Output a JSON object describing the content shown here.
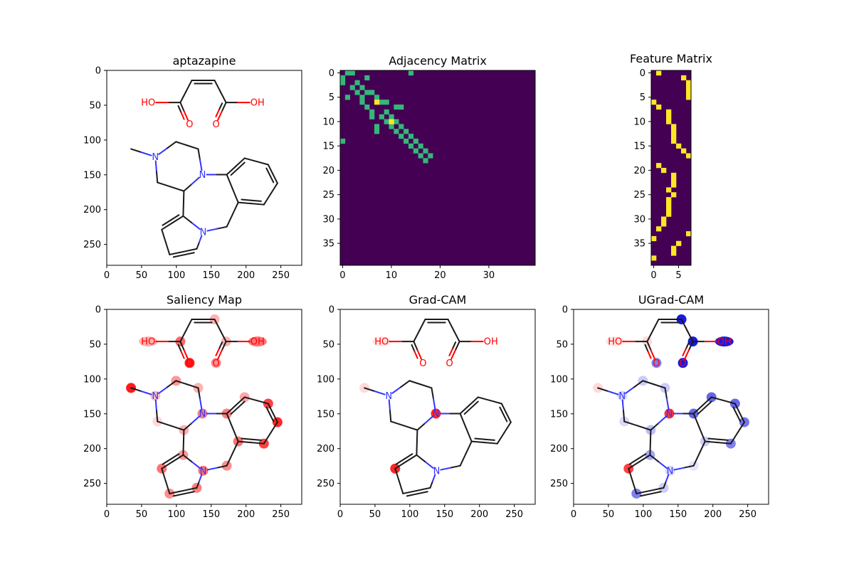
{
  "panels": [
    {
      "id": "p1",
      "title": "aptazapine"
    },
    {
      "id": "p2",
      "title": "Adjacency Matrix"
    },
    {
      "id": "p3",
      "title": "Feature Matrix"
    },
    {
      "id": "p4",
      "title": "Saliency Map"
    },
    {
      "id": "p5",
      "title": "Grad-CAM"
    },
    {
      "id": "p6",
      "title": "UGrad-CAM"
    }
  ],
  "chart_data": [
    {
      "type": "image",
      "title": "aptazapine",
      "xlim": [
        0,
        280
      ],
      "ylim": [
        280,
        0
      ],
      "xticks": [
        0,
        50,
        100,
        150,
        200,
        250
      ],
      "yticks": [
        0,
        50,
        100,
        150,
        200,
        250
      ],
      "atom_labels": [
        "HO",
        "O",
        "O",
        "OH",
        "N",
        "N",
        "N"
      ]
    },
    {
      "type": "heatmap",
      "title": "Adjacency Matrix",
      "xlim": [
        -0.5,
        39.5
      ],
      "ylim": [
        39.5,
        -0.5
      ],
      "xticks": [
        0,
        10,
        20,
        30
      ],
      "yticks": [
        0,
        5,
        10,
        15,
        20,
        25,
        30,
        35
      ],
      "colors": {
        "zero": "#440154",
        "one": "#35b779"
      },
      "cells": [
        [
          0,
          1
        ],
        [
          1,
          0
        ],
        [
          0,
          2
        ],
        [
          2,
          0
        ],
        [
          1,
          5
        ],
        [
          5,
          1
        ],
        [
          2,
          3
        ],
        [
          3,
          2
        ],
        [
          3,
          4
        ],
        [
          4,
          3
        ],
        [
          4,
          5
        ],
        [
          5,
          4
        ],
        [
          4,
          6
        ],
        [
          6,
          4
        ],
        [
          5,
          7
        ],
        [
          7,
          5
        ],
        [
          6,
          8
        ],
        [
          8,
          6
        ],
        [
          6,
          9
        ],
        [
          9,
          6
        ],
        [
          7,
          11
        ],
        [
          11,
          7
        ],
        [
          7,
          12
        ],
        [
          12,
          7
        ],
        [
          8,
          9
        ],
        [
          9,
          8
        ],
        [
          9,
          10
        ],
        [
          10,
          9
        ],
        [
          10,
          11
        ],
        [
          11,
          10
        ],
        [
          11,
          12
        ],
        [
          12,
          11
        ],
        [
          12,
          13
        ],
        [
          13,
          12
        ],
        [
          13,
          14
        ],
        [
          14,
          13
        ],
        [
          14,
          15
        ],
        [
          15,
          14
        ],
        [
          15,
          16
        ],
        [
          16,
          15
        ],
        [
          16,
          17
        ],
        [
          17,
          16
        ],
        [
          17,
          18
        ],
        [
          18,
          17
        ],
        [
          0,
          14
        ],
        [
          14,
          0
        ]
      ],
      "diagonal_highlight": [
        [
          6,
          7
        ],
        [
          10,
          10
        ]
      ]
    },
    {
      "type": "heatmap",
      "title": "Feature Matrix",
      "xlim": [
        -0.5,
        7.5
      ],
      "ylim": [
        39.5,
        -0.5
      ],
      "xticks": [
        0,
        5
      ],
      "yticks": [
        0,
        5,
        10,
        15,
        20,
        25,
        30,
        35
      ],
      "colors": {
        "zero": "#440154",
        "one": "#fde725"
      },
      "cells": [
        [
          0,
          1
        ],
        [
          1,
          6
        ],
        [
          2,
          7
        ],
        [
          3,
          7
        ],
        [
          4,
          7
        ],
        [
          5,
          7
        ],
        [
          6,
          0
        ],
        [
          7,
          1
        ],
        [
          8,
          3
        ],
        [
          9,
          3
        ],
        [
          10,
          3
        ],
        [
          11,
          4
        ],
        [
          12,
          4
        ],
        [
          13,
          4
        ],
        [
          14,
          4
        ],
        [
          15,
          5
        ],
        [
          16,
          6
        ],
        [
          17,
          7
        ],
        [
          19,
          1
        ],
        [
          20,
          2
        ],
        [
          21,
          4
        ],
        [
          22,
          4
        ],
        [
          23,
          4
        ],
        [
          24,
          3
        ],
        [
          25,
          4
        ],
        [
          26,
          3
        ],
        [
          27,
          3
        ],
        [
          28,
          3
        ],
        [
          29,
          3
        ],
        [
          30,
          2
        ],
        [
          31,
          2
        ],
        [
          32,
          1
        ],
        [
          33,
          7
        ],
        [
          34,
          0
        ],
        [
          35,
          5
        ],
        [
          36,
          4
        ],
        [
          37,
          4
        ],
        [
          38,
          0
        ]
      ]
    },
    {
      "type": "image",
      "title": "Saliency Map",
      "xlim": [
        0,
        280
      ],
      "ylim": [
        280,
        0
      ],
      "xticks": [
        0,
        50,
        100,
        150,
        200,
        250
      ],
      "yticks": [
        0,
        50,
        100,
        150,
        200,
        250
      ],
      "atom_labels": [
        "HO",
        "O",
        "O",
        "OH",
        "N",
        "N",
        "N"
      ],
      "highlight_color": "#ff0000",
      "atom_weights": [
        0.3,
        0.0,
        0.6,
        0.3,
        0.3,
        0.55,
        0.45,
        0.9,
        0.9,
        0.25,
        0.4,
        0.3,
        0.15,
        0.3,
        0.5,
        0.4,
        0.55,
        0.45,
        0.5,
        0.55,
        0.45,
        0.55,
        0.75,
        0.85,
        0.75,
        0.35,
        0.5
      ]
    },
    {
      "type": "image",
      "title": "Grad-CAM",
      "xlim": [
        0,
        280
      ],
      "ylim": [
        280,
        0
      ],
      "xticks": [
        0,
        50,
        100,
        150,
        200,
        250
      ],
      "yticks": [
        0,
        50,
        100,
        150,
        200,
        250
      ],
      "atom_labels": [
        "HO",
        "O",
        "O",
        "OH",
        "N",
        "N",
        "N"
      ],
      "highlight_color": "#ff0000",
      "atom_weights": [
        0.1,
        0.0,
        0.0,
        0.0,
        0.0,
        0.0,
        0.0,
        0.0,
        0.15,
        0.0,
        0.0,
        0.0,
        0.0,
        0.0,
        0.85,
        0.0,
        0.85,
        0.0,
        0.0,
        0.0,
        0.0,
        0.0,
        0.0,
        0.0,
        0.0,
        0.0,
        0.0
      ]
    },
    {
      "type": "image",
      "title": "UGrad-CAM",
      "xlim": [
        0,
        280
      ],
      "ylim": [
        280,
        0
      ],
      "xticks": [
        0,
        50,
        100,
        150,
        200,
        250
      ],
      "yticks": [
        0,
        50,
        100,
        150,
        200,
        250
      ],
      "atom_labels": [
        "HO",
        "O",
        "O",
        "OH",
        "N",
        "N",
        "N"
      ],
      "highlight_positive": "#ff0000",
      "highlight_negative": "#0000dd",
      "atom_weights": [
        0.1,
        0.0,
        0.15,
        -0.9,
        -0.9,
        -0.9,
        -0.9,
        -0.5,
        0.15,
        -0.15,
        -0.2,
        -0.2,
        -0.15,
        -0.25,
        0.8,
        -0.35,
        0.75,
        -0.5,
        -0.2,
        -0.15,
        -0.1,
        -0.2,
        -0.5,
        -0.55,
        -0.6,
        -0.6,
        -0.6
      ]
    }
  ]
}
